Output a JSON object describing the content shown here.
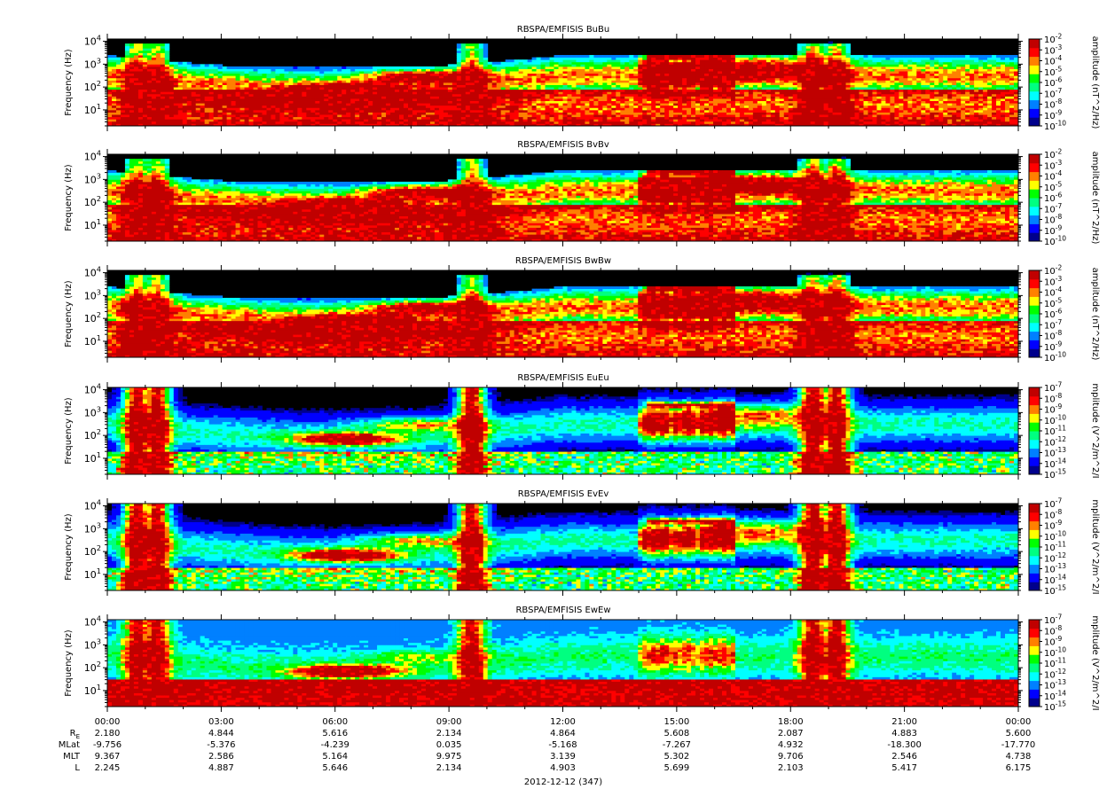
{
  "figure": {
    "date_label": "2012-12-12 (347)",
    "colors": {
      "background": "#000000",
      "colormap": [
        "#00008c",
        "#0000ff",
        "#0080ff",
        "#00ffff",
        "#00ff80",
        "#00ff00",
        "#ffff00",
        "#ff8000",
        "#ff0000",
        "#c00000"
      ]
    }
  },
  "chart_data": [
    {
      "type": "heatmap",
      "title": "RBSPA/EMFISIS  BuBu",
      "ylabel": "Frequency (Hz)",
      "ylim_log10": [
        0.3,
        4.1
      ],
      "y_ticks": [
        {
          "base": "10",
          "exp": "1"
        },
        {
          "base": "10",
          "exp": "2"
        },
        {
          "base": "10",
          "exp": "3"
        },
        {
          "base": "10",
          "exp": "4"
        }
      ],
      "colorbar": {
        "label": "amplitude (nT^2/Hz)",
        "range_log10": [
          -10,
          -2
        ],
        "ticks": [
          {
            "base": "10",
            "exp": "-2"
          },
          {
            "base": "10",
            "exp": "-3"
          },
          {
            "base": "10",
            "exp": "-4"
          },
          {
            "base": "10",
            "exp": "-5"
          },
          {
            "base": "10",
            "exp": "-6"
          },
          {
            "base": "10",
            "exp": "-7"
          },
          {
            "base": "10",
            "exp": "-8"
          },
          {
            "base": "10",
            "exp": "-9"
          },
          {
            "base": "10",
            "exp": "-10"
          }
        ]
      },
      "kind": "B",
      "features": {
        "chorus_start_hours": 14.2,
        "lowfreq_band": "green"
      }
    },
    {
      "type": "heatmap",
      "title": "RBSPA/EMFISIS  BvBv",
      "ylabel": "Frequency (Hz)",
      "ylim_log10": [
        0.3,
        4.1
      ],
      "y_ticks": [
        {
          "base": "10",
          "exp": "1"
        },
        {
          "base": "10",
          "exp": "2"
        },
        {
          "base": "10",
          "exp": "3"
        },
        {
          "base": "10",
          "exp": "4"
        }
      ],
      "colorbar": {
        "label": "amplitude (nT^2/Hz)",
        "range_log10": [
          -10,
          -2
        ],
        "ticks": [
          {
            "base": "10",
            "exp": "-2"
          },
          {
            "base": "10",
            "exp": "-3"
          },
          {
            "base": "10",
            "exp": "-4"
          },
          {
            "base": "10",
            "exp": "-5"
          },
          {
            "base": "10",
            "exp": "-6"
          },
          {
            "base": "10",
            "exp": "-7"
          },
          {
            "base": "10",
            "exp": "-8"
          },
          {
            "base": "10",
            "exp": "-9"
          },
          {
            "base": "10",
            "exp": "-10"
          }
        ]
      },
      "kind": "B"
    },
    {
      "type": "heatmap",
      "title": "RBSPA/EMFISIS  BwBw",
      "ylabel": "Frequency (Hz)",
      "ylim_log10": [
        0.3,
        4.1
      ],
      "y_ticks": [
        {
          "base": "10",
          "exp": "1"
        },
        {
          "base": "10",
          "exp": "2"
        },
        {
          "base": "10",
          "exp": "3"
        },
        {
          "base": "10",
          "exp": "4"
        }
      ],
      "colorbar": {
        "label": "amplitude (nT^2/Hz)",
        "range_log10": [
          -10,
          -2
        ],
        "ticks": [
          {
            "base": "10",
            "exp": "-2"
          },
          {
            "base": "10",
            "exp": "-3"
          },
          {
            "base": "10",
            "exp": "-4"
          },
          {
            "base": "10",
            "exp": "-5"
          },
          {
            "base": "10",
            "exp": "-6"
          },
          {
            "base": "10",
            "exp": "-7"
          },
          {
            "base": "10",
            "exp": "-8"
          },
          {
            "base": "10",
            "exp": "-9"
          },
          {
            "base": "10",
            "exp": "-10"
          }
        ]
      },
      "kind": "B"
    },
    {
      "type": "heatmap",
      "title": "RBSPA/EMFISIS  EuEu",
      "ylabel": "Frequency (Hz)",
      "ylim_log10": [
        0.3,
        4.1
      ],
      "y_ticks": [
        {
          "base": "10",
          "exp": "1"
        },
        {
          "base": "10",
          "exp": "2"
        },
        {
          "base": "10",
          "exp": "3"
        },
        {
          "base": "10",
          "exp": "4"
        }
      ],
      "colorbar": {
        "label": "mplitude (V^2/m^2/I",
        "range_log10": [
          -15,
          -7
        ],
        "ticks": [
          {
            "base": "10",
            "exp": "-7"
          },
          {
            "base": "10",
            "exp": "-8"
          },
          {
            "base": "10",
            "exp": "-9"
          },
          {
            "base": "10",
            "exp": "-10"
          },
          {
            "base": "10",
            "exp": "-11"
          },
          {
            "base": "10",
            "exp": "-12"
          },
          {
            "base": "10",
            "exp": "-13"
          },
          {
            "base": "10",
            "exp": "-14"
          },
          {
            "base": "10",
            "exp": "-15"
          }
        ]
      },
      "kind": "E"
    },
    {
      "type": "heatmap",
      "title": "RBSPA/EMFISIS  EvEv",
      "ylabel": "Frequency (Hz)",
      "ylim_log10": [
        0.3,
        4.1
      ],
      "y_ticks": [
        {
          "base": "10",
          "exp": "1"
        },
        {
          "base": "10",
          "exp": "2"
        },
        {
          "base": "10",
          "exp": "3"
        },
        {
          "base": "10",
          "exp": "4"
        }
      ],
      "colorbar": {
        "label": "mplitude (V^2/m^2/I",
        "range_log10": [
          -15,
          -7
        ],
        "ticks": [
          {
            "base": "10",
            "exp": "-7"
          },
          {
            "base": "10",
            "exp": "-8"
          },
          {
            "base": "10",
            "exp": "-9"
          },
          {
            "base": "10",
            "exp": "-10"
          },
          {
            "base": "10",
            "exp": "-11"
          },
          {
            "base": "10",
            "exp": "-12"
          },
          {
            "base": "10",
            "exp": "-13"
          },
          {
            "base": "10",
            "exp": "-14"
          },
          {
            "base": "10",
            "exp": "-15"
          }
        ]
      },
      "kind": "E"
    },
    {
      "type": "heatmap",
      "title": "RBSPA/EMFISIS  EwEw",
      "ylabel": "Frequency (Hz)",
      "ylim_log10": [
        0.3,
        4.1
      ],
      "y_ticks": [
        {
          "base": "10",
          "exp": "1"
        },
        {
          "base": "10",
          "exp": "2"
        },
        {
          "base": "10",
          "exp": "3"
        },
        {
          "base": "10",
          "exp": "4"
        }
      ],
      "colorbar": {
        "label": "mplitude (V^2/m^2/I",
        "range_log10": [
          -15,
          -7
        ],
        "ticks": [
          {
            "base": "10",
            "exp": "-7"
          },
          {
            "base": "10",
            "exp": "-8"
          },
          {
            "base": "10",
            "exp": "-9"
          },
          {
            "base": "10",
            "exp": "-10"
          },
          {
            "base": "10",
            "exp": "-11"
          },
          {
            "base": "10",
            "exp": "-12"
          },
          {
            "base": "10",
            "exp": "-13"
          },
          {
            "base": "10",
            "exp": "-14"
          },
          {
            "base": "10",
            "exp": "-15"
          }
        ]
      },
      "kind": "Ew"
    }
  ],
  "time_axis": {
    "range_hours": [
      0,
      24
    ],
    "major_labels": [
      "00:00",
      "03:00",
      "06:00",
      "09:00",
      "12:00",
      "15:00",
      "18:00",
      "21:00",
      "00:00"
    ],
    "ephemeris": [
      {
        "name_base": "R",
        "name_sub": "E",
        "values": [
          "2.180",
          "4.844",
          "5.616",
          "2.134",
          "4.864",
          "5.608",
          "2.087",
          "4.883",
          "5.600"
        ]
      },
      {
        "name_base": "MLat",
        "name_sub": "",
        "values": [
          "-9.756",
          "-5.376",
          "-4.239",
          "0.035",
          "-5.168",
          "-7.267",
          "4.932",
          "-18.300",
          "-17.770"
        ]
      },
      {
        "name_base": "MLT",
        "name_sub": "",
        "values": [
          "9.367",
          "2.586",
          "5.164",
          "9.975",
          "3.139",
          "5.302",
          "9.706",
          "2.546",
          "4.738"
        ]
      },
      {
        "name_base": "L",
        "name_sub": "",
        "values": [
          "2.245",
          "4.887",
          "5.646",
          "2.134",
          "4.903",
          "5.699",
          "2.103",
          "5.417",
          "6.175"
        ]
      }
    ]
  }
}
